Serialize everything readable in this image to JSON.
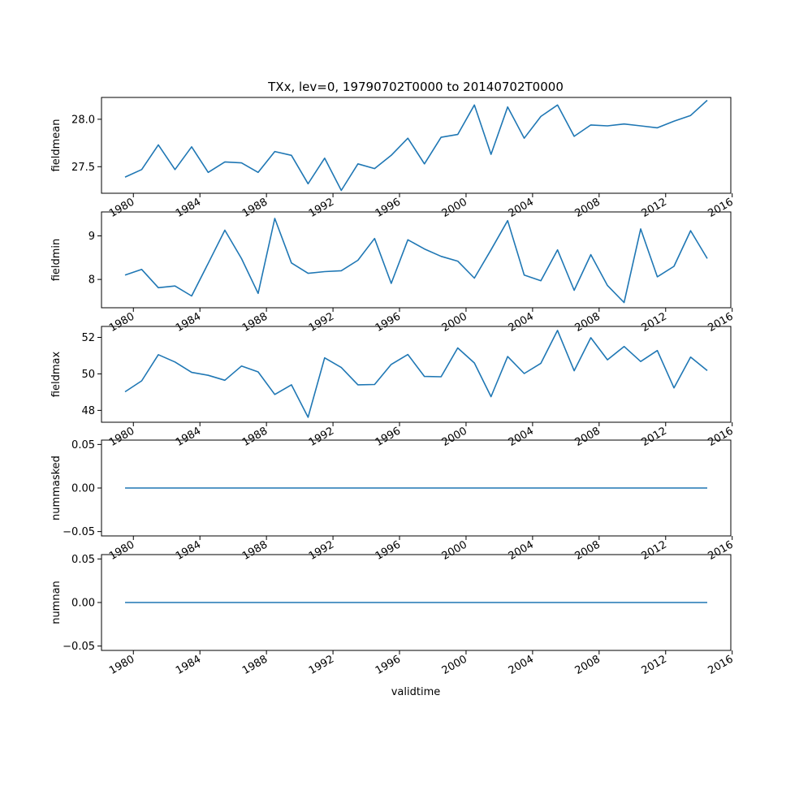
{
  "title": "TXx, lev=0, 19790702T0000 to 20140702T0000",
  "xlabel": "validtime",
  "colors": {
    "line": "#1f77b4"
  },
  "chart_data": {
    "type": "line",
    "x": [
      1979,
      1980,
      1981,
      1982,
      1983,
      1984,
      1985,
      1986,
      1987,
      1988,
      1989,
      1990,
      1991,
      1992,
      1993,
      1994,
      1995,
      1996,
      1997,
      1998,
      1999,
      2000,
      2001,
      2002,
      2003,
      2004,
      2005,
      2006,
      2007,
      2008,
      2009,
      2010,
      2011,
      2012,
      2013,
      2014
    ],
    "xlim": [
      "1978-02",
      "2015-12"
    ],
    "xticks": [
      "1980",
      "1984",
      "1988",
      "1992",
      "1996",
      "2000",
      "2004",
      "2008",
      "2012",
      "2016"
    ],
    "panels": [
      {
        "ylabel": "fieldmean",
        "ylim": [
          27.22,
          28.23
        ],
        "yticks": [
          "27.5",
          "28.0"
        ],
        "values": [
          27.39,
          27.47,
          27.73,
          27.47,
          27.71,
          27.44,
          27.55,
          27.54,
          27.44,
          27.66,
          27.62,
          27.32,
          27.59,
          27.25,
          27.53,
          27.48,
          27.62,
          27.8,
          27.53,
          27.81,
          27.84,
          28.15,
          27.63,
          28.13,
          27.8,
          28.03,
          28.15,
          27.82,
          27.94,
          27.93,
          27.95,
          27.93,
          27.91,
          27.98,
          28.04,
          28.2
        ]
      },
      {
        "ylabel": "fieldmin",
        "ylim": [
          7.35,
          9.55
        ],
        "yticks": [
          "8",
          "9"
        ],
        "values": [
          8.1,
          8.23,
          7.81,
          7.85,
          7.62,
          8.37,
          9.13,
          8.48,
          7.68,
          9.4,
          8.38,
          8.14,
          8.18,
          8.2,
          8.44,
          8.94,
          7.91,
          8.91,
          8.7,
          8.53,
          8.42,
          8.03,
          8.68,
          9.35,
          8.1,
          7.97,
          8.68,
          7.75,
          8.57,
          7.86,
          7.47,
          9.16,
          8.06,
          8.3,
          9.12,
          8.48
        ]
      },
      {
        "ylabel": "fieldmax",
        "ylim": [
          47.35,
          52.6
        ],
        "yticks": [
          "48",
          "50",
          "52"
        ],
        "values": [
          49.02,
          49.62,
          51.05,
          50.65,
          50.08,
          49.92,
          49.65,
          50.43,
          50.11,
          48.87,
          49.4,
          47.62,
          50.88,
          50.35,
          49.4,
          49.42,
          50.52,
          51.06,
          49.86,
          49.84,
          51.42,
          50.6,
          48.75,
          50.95,
          50.02,
          50.58,
          52.38,
          50.17,
          51.98,
          50.77,
          51.5,
          50.68,
          51.28,
          49.23,
          50.92,
          50.18
        ]
      },
      {
        "ylabel": "nummasked",
        "ylim": [
          -0.055,
          0.055
        ],
        "yticks": [
          "−0.05",
          "0.00",
          "0.05"
        ],
        "values": [
          0,
          0,
          0,
          0,
          0,
          0,
          0,
          0,
          0,
          0,
          0,
          0,
          0,
          0,
          0,
          0,
          0,
          0,
          0,
          0,
          0,
          0,
          0,
          0,
          0,
          0,
          0,
          0,
          0,
          0,
          0,
          0,
          0,
          0,
          0,
          0
        ]
      },
      {
        "ylabel": "numnan",
        "ylim": [
          -0.055,
          0.055
        ],
        "yticks": [
          "−0.05",
          "0.00",
          "0.05"
        ],
        "values": [
          0,
          0,
          0,
          0,
          0,
          0,
          0,
          0,
          0,
          0,
          0,
          0,
          0,
          0,
          0,
          0,
          0,
          0,
          0,
          0,
          0,
          0,
          0,
          0,
          0,
          0,
          0,
          0,
          0,
          0,
          0,
          0,
          0,
          0,
          0,
          0
        ]
      }
    ]
  }
}
